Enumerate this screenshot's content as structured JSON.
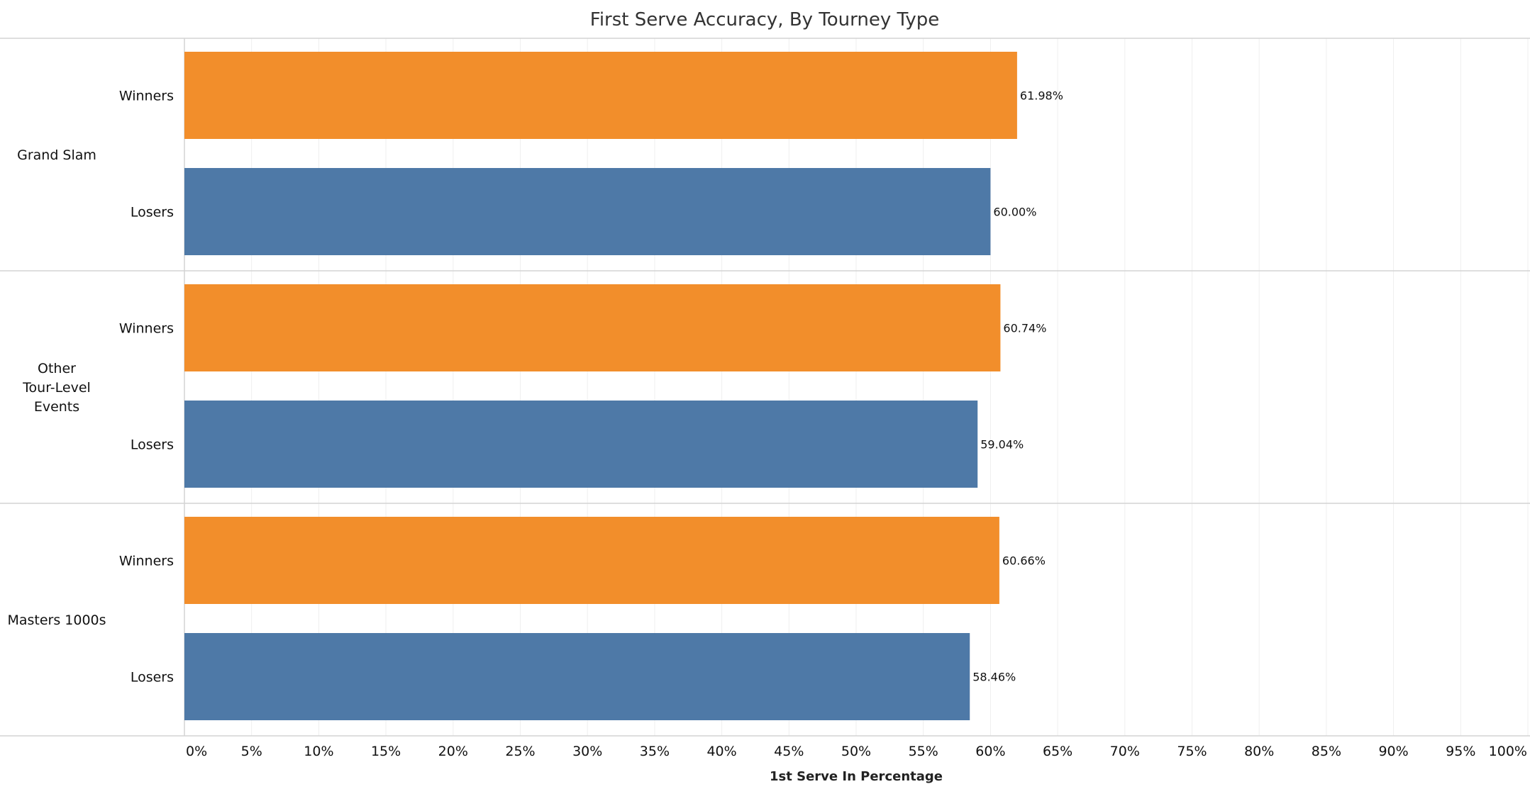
{
  "chart_data": {
    "type": "bar",
    "orientation": "horizontal",
    "title": "First Serve Accuracy, By Tourney Type",
    "xlabel": "1st Serve In Percentage",
    "ylabel": "",
    "xlim": [
      0,
      100
    ],
    "x_ticks": [
      "0%",
      "5%",
      "10%",
      "15%",
      "20%",
      "25%",
      "30%",
      "35%",
      "40%",
      "45%",
      "50%",
      "55%",
      "60%",
      "65%",
      "70%",
      "75%",
      "80%",
      "85%",
      "90%",
      "95%",
      "100%"
    ],
    "grid": true,
    "colors": {
      "Winners": "#f28e2b",
      "Losers": "#4e79a7"
    },
    "groups": [
      {
        "name": "Grand Slam",
        "bars": [
          {
            "label": "Winners",
            "value": 61.98,
            "display": "61.98%"
          },
          {
            "label": "Losers",
            "value": 60.0,
            "display": "60.00%"
          }
        ]
      },
      {
        "name": "Other Tour-Level Events",
        "name_lines": [
          "Other",
          "Tour-Level",
          "Events"
        ],
        "bars": [
          {
            "label": "Winners",
            "value": 60.74,
            "display": "60.74%"
          },
          {
            "label": "Losers",
            "value": 59.04,
            "display": "59.04%"
          }
        ]
      },
      {
        "name": "Masters 1000s",
        "bars": [
          {
            "label": "Winners",
            "value": 60.66,
            "display": "60.66%"
          },
          {
            "label": "Losers",
            "value": 58.46,
            "display": "58.46%"
          }
        ]
      }
    ]
  }
}
